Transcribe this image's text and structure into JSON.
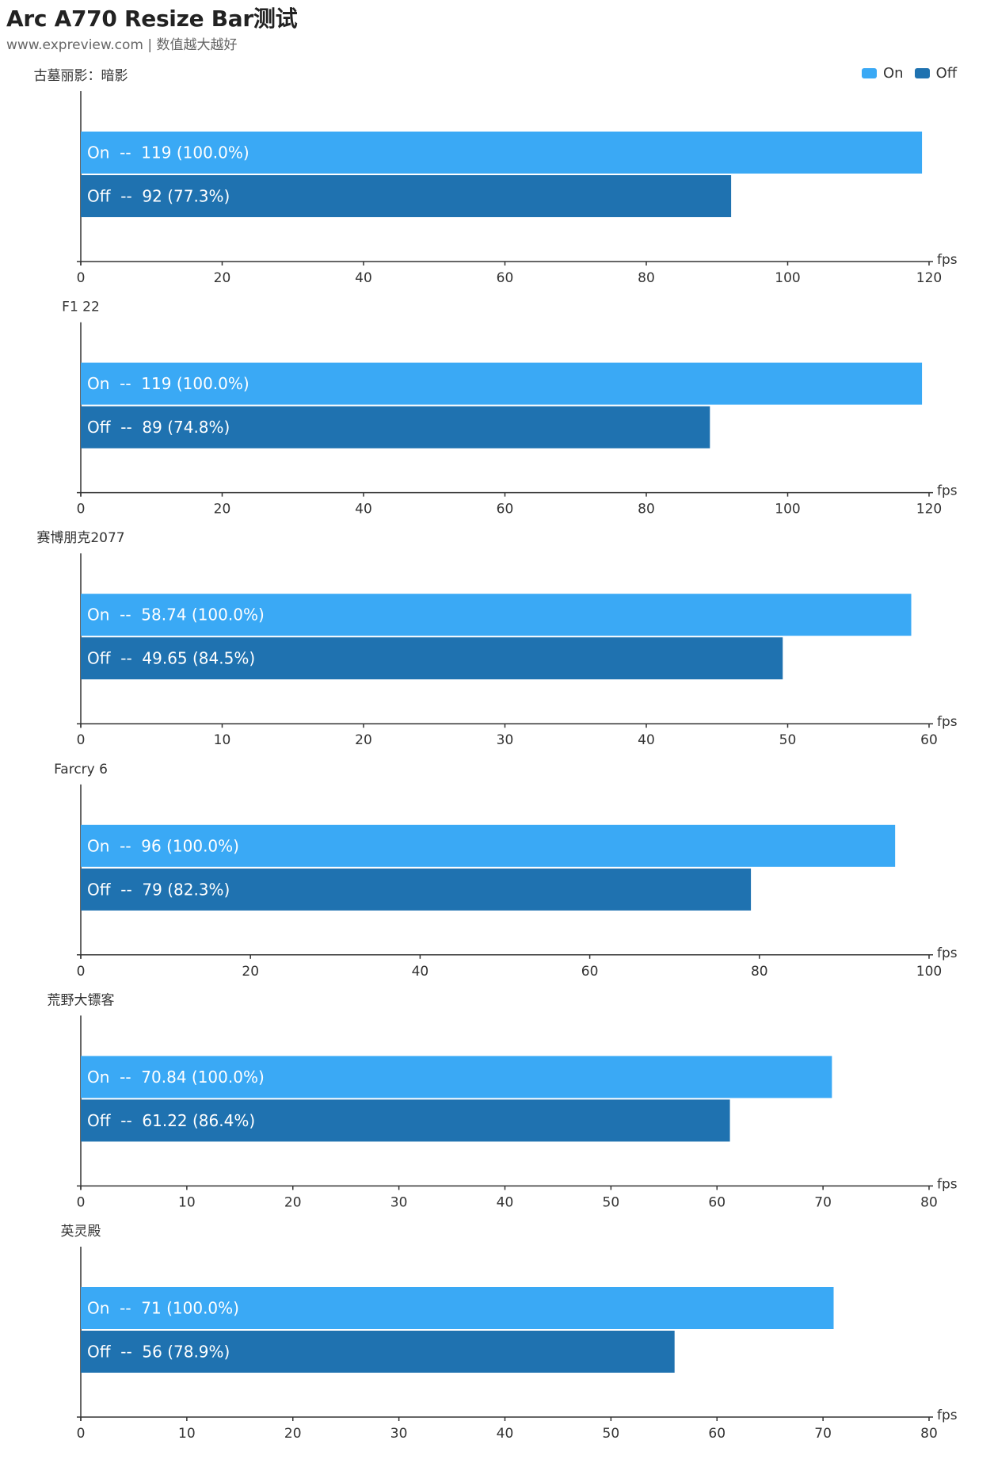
{
  "header": {
    "title": "Arc A770 Resize Bar测试",
    "subtitle": "www.expreview.com | 数值越大越好"
  },
  "legend": [
    {
      "name": "On",
      "color": "#3aa9f5"
    },
    {
      "name": "Off",
      "color": "#1f72b0"
    }
  ],
  "colors": {
    "on": "#3aa9f5",
    "off": "#1f72b0",
    "axis": "#333333"
  },
  "chart_data": [
    {
      "type": "bar",
      "orientation": "horizontal",
      "title": "古墓丽影：暗影",
      "xlabel": "fps",
      "xlim": [
        0,
        120
      ],
      "ticks": [
        0,
        20,
        40,
        60,
        80,
        100,
        120
      ],
      "series": [
        {
          "name": "On",
          "value": 119,
          "label": "On  --  119 (100.0%)"
        },
        {
          "name": "Off",
          "value": 92,
          "label": "Off  --  92 (77.3%)"
        }
      ]
    },
    {
      "type": "bar",
      "orientation": "horizontal",
      "title": "F1 22",
      "xlabel": "fps",
      "xlim": [
        0,
        120
      ],
      "ticks": [
        0,
        20,
        40,
        60,
        80,
        100,
        120
      ],
      "series": [
        {
          "name": "On",
          "value": 119,
          "label": "On  --  119 (100.0%)"
        },
        {
          "name": "Off",
          "value": 89,
          "label": "Off  --  89 (74.8%)"
        }
      ]
    },
    {
      "type": "bar",
      "orientation": "horizontal",
      "title": "赛博朋克2077",
      "xlabel": "fps",
      "xlim": [
        0,
        60
      ],
      "ticks": [
        0,
        10,
        20,
        30,
        40,
        50,
        60
      ],
      "series": [
        {
          "name": "On",
          "value": 58.74,
          "label": "On  --  58.74 (100.0%)"
        },
        {
          "name": "Off",
          "value": 49.65,
          "label": "Off  --  49.65 (84.5%)"
        }
      ]
    },
    {
      "type": "bar",
      "orientation": "horizontal",
      "title": "Farcry 6",
      "xlabel": "fps",
      "xlim": [
        0,
        100
      ],
      "ticks": [
        0,
        20,
        40,
        60,
        80,
        100
      ],
      "series": [
        {
          "name": "On",
          "value": 96,
          "label": "On  --  96 (100.0%)"
        },
        {
          "name": "Off",
          "value": 79,
          "label": "Off  --  79 (82.3%)"
        }
      ]
    },
    {
      "type": "bar",
      "orientation": "horizontal",
      "title": "荒野大镖客",
      "xlabel": "fps",
      "xlim": [
        0,
        80
      ],
      "ticks": [
        0,
        10,
        20,
        30,
        40,
        50,
        60,
        70,
        80
      ],
      "series": [
        {
          "name": "On",
          "value": 70.84,
          "label": "On  --  70.84 (100.0%)"
        },
        {
          "name": "Off",
          "value": 61.22,
          "label": "Off  --  61.22 (86.4%)"
        }
      ]
    },
    {
      "type": "bar",
      "orientation": "horizontal",
      "title": "英灵殿",
      "xlabel": "fps",
      "xlim": [
        0,
        80
      ],
      "ticks": [
        0,
        10,
        20,
        30,
        40,
        50,
        60,
        70,
        80
      ],
      "series": [
        {
          "name": "On",
          "value": 71,
          "label": "On  --  71 (100.0%)"
        },
        {
          "name": "Off",
          "value": 56,
          "label": "Off  --  56 (78.9%)"
        }
      ]
    }
  ]
}
